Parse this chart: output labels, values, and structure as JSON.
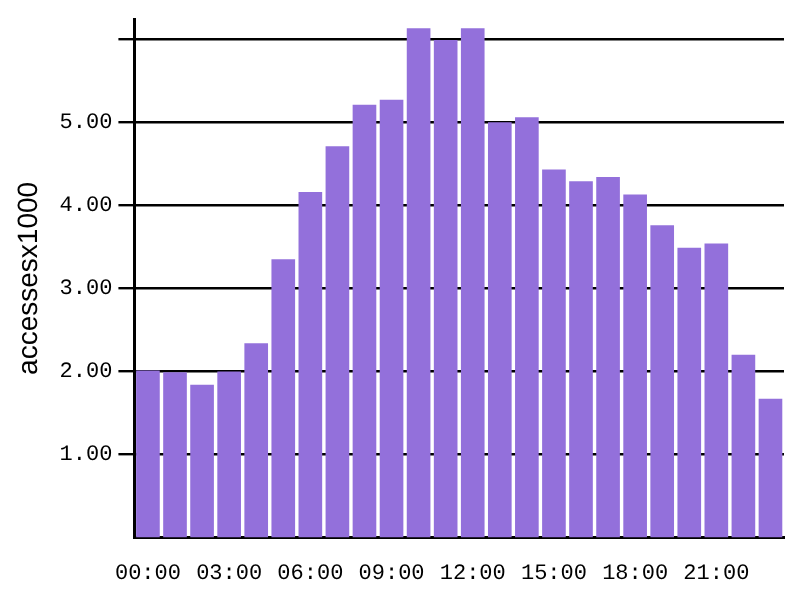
{
  "chart_data": {
    "type": "bar",
    "ylabel": "accessesx1000",
    "categories": [
      "00:00",
      null,
      null,
      "03:00",
      null,
      null,
      "06:00",
      null,
      null,
      "09:00",
      null,
      null,
      "12:00",
      null,
      null,
      "15:00",
      null,
      null,
      "18:00",
      null,
      null,
      "21:00",
      null,
      null
    ],
    "values": [
      2.01,
      1.99,
      1.84,
      2.0,
      2.34,
      3.35,
      4.16,
      4.71,
      5.21,
      5.27,
      6.13,
      5.99,
      6.13,
      5.0,
      5.06,
      4.43,
      4.29,
      4.34,
      4.13,
      3.76,
      3.49,
      3.54,
      2.2,
      1.67
    ],
    "color": "#9370db",
    "ylim": [
      0,
      6.24
    ],
    "yticks": [
      {
        "value": 1,
        "label": "1.00"
      },
      {
        "value": 2,
        "label": "2.00"
      },
      {
        "value": 3,
        "label": "3.00"
      },
      {
        "value": 4,
        "label": "4.00"
      },
      {
        "value": 5,
        "label": "5.00"
      },
      {
        "value": 6,
        "label": null
      }
    ],
    "grid": "y",
    "legend": false
  }
}
